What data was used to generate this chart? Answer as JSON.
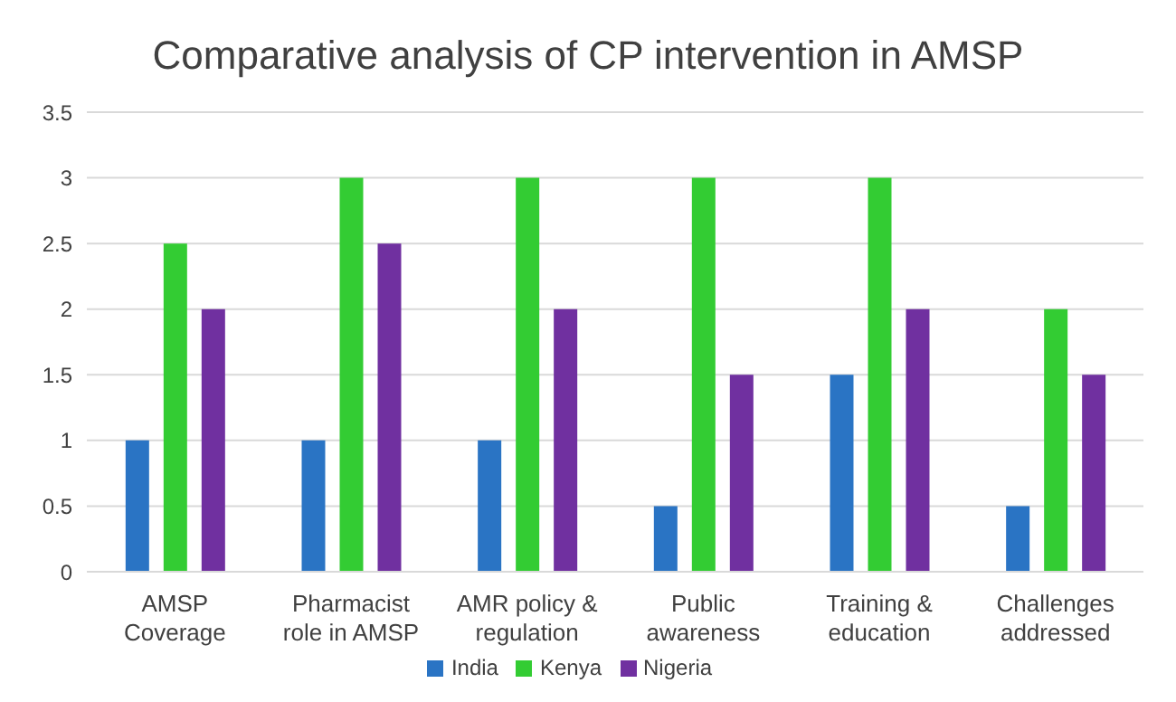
{
  "chart_data": {
    "type": "bar",
    "title": "Comparative analysis of CP intervention in AMSP",
    "categories": [
      "AMSP Coverage",
      "Pharmacist role in AMSP",
      "AMR policy & regulation",
      "Public awareness",
      "Training & education",
      "Challenges addressed"
    ],
    "series": [
      {
        "name": "India",
        "color": "#2a74c4",
        "values": [
          1,
          1,
          1,
          0.5,
          1.5,
          0.5
        ]
      },
      {
        "name": "Kenya",
        "color": "#33cc33",
        "values": [
          2.5,
          3,
          3,
          3,
          3,
          2
        ]
      },
      {
        "name": "Nigeria",
        "color": "#7030a0",
        "values": [
          2,
          2.5,
          2,
          1.5,
          2,
          1.5
        ]
      }
    ],
    "ylim": [
      0,
      3.5
    ],
    "yticks": [
      0,
      0.5,
      1,
      1.5,
      2,
      2.5,
      3,
      3.5
    ],
    "grid": "y",
    "legend": "bottom"
  }
}
